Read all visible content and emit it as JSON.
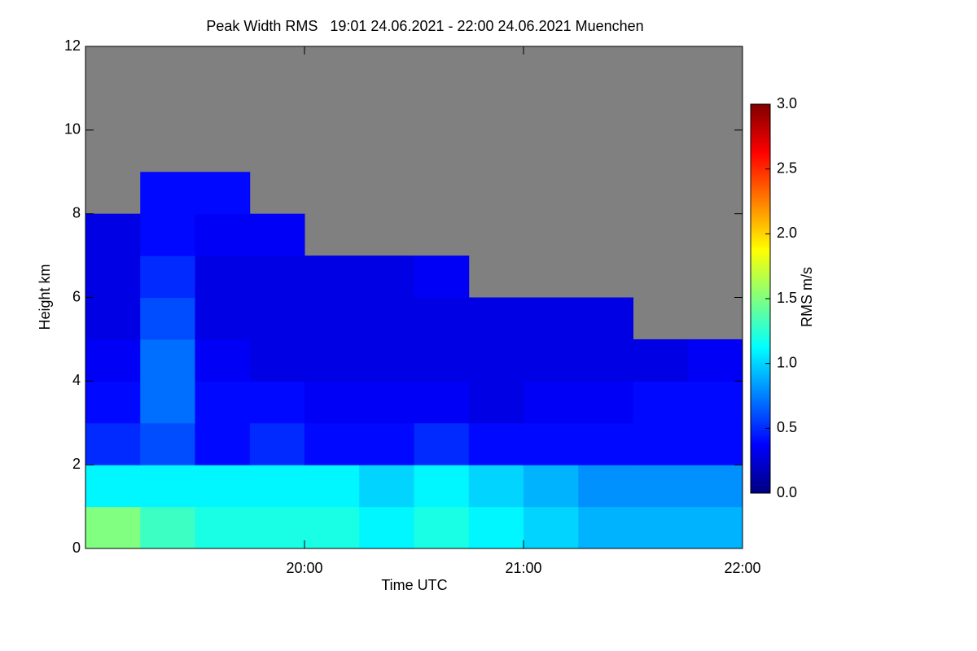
{
  "chart_data": {
    "type": "heatmap",
    "title": "Peak Width RMS   19:01 24.06.2021 - 22:00 24.06.2021 Muenchen",
    "x_label": "Time UTC",
    "y_label": "Height km",
    "colorbar_label": "RMS m/s",
    "x": [
      19,
      19.25,
      19.5,
      19.75,
      20,
      20.25,
      20.5,
      20.75,
      21,
      21.25,
      21.5,
      21.75,
      22
    ],
    "y": [
      0,
      1,
      2,
      3,
      4,
      5,
      6,
      7,
      8,
      9,
      10,
      11,
      12
    ],
    "values": [
      [
        1.5,
        1.3,
        1.2,
        1.2,
        1.2,
        1.1,
        1.2,
        1.1,
        1.0,
        0.9,
        0.9,
        0.9
      ],
      [
        1.1,
        1.1,
        1.1,
        1.1,
        1.1,
        1.0,
        1.1,
        1.0,
        0.9,
        0.8,
        0.8,
        0.8
      ],
      [
        0.5,
        0.6,
        0.4,
        0.5,
        0.4,
        0.4,
        0.5,
        0.4,
        0.4,
        0.4,
        0.4,
        0.4
      ],
      [
        0.4,
        0.7,
        0.4,
        0.4,
        0.35,
        0.35,
        0.35,
        0.3,
        0.35,
        0.35,
        0.4,
        0.4
      ],
      [
        0.35,
        0.7,
        0.35,
        0.3,
        0.3,
        0.3,
        0.3,
        0.3,
        0.3,
        0.3,
        0.3,
        0.35
      ],
      [
        0.3,
        0.6,
        0.3,
        0.3,
        0.3,
        0.3,
        0.3,
        0.3,
        0.3,
        0.3,
        null,
        null
      ],
      [
        0.3,
        0.5,
        0.3,
        0.3,
        0.3,
        0.3,
        0.35,
        null,
        null,
        null,
        null,
        null
      ],
      [
        0.3,
        0.4,
        0.35,
        0.35,
        null,
        null,
        null,
        null,
        null,
        null,
        null,
        null
      ],
      [
        null,
        0.4,
        0.4,
        null,
        null,
        null,
        null,
        null,
        null,
        null,
        null,
        null
      ],
      [
        null,
        null,
        null,
        null,
        null,
        null,
        null,
        null,
        null,
        null,
        null,
        null
      ],
      [
        null,
        null,
        null,
        null,
        null,
        null,
        null,
        null,
        null,
        null,
        null,
        null
      ],
      [
        null,
        null,
        null,
        null,
        null,
        null,
        null,
        null,
        null,
        null,
        null,
        null
      ]
    ],
    "colormap": "jet",
    "missing_color": "#808080",
    "xlim": [
      19,
      22
    ],
    "xticks": [
      {
        "value": 20,
        "label": "20:00"
      },
      {
        "value": 21,
        "label": "21:00"
      },
      {
        "value": 22,
        "label": "22:00"
      }
    ],
    "ylim": [
      0,
      12
    ],
    "yticks": [
      0,
      2,
      4,
      6,
      8,
      10,
      12
    ],
    "zlim": [
      0,
      3
    ],
    "zticks": [
      {
        "value": 0,
        "label": "0.0"
      },
      {
        "value": 0.5,
        "label": "0.5"
      },
      {
        "value": 1,
        "label": "1.0"
      },
      {
        "value": 1.5,
        "label": "1.5"
      },
      {
        "value": 2,
        "label": "2.0"
      },
      {
        "value": 2.5,
        "label": "2.5"
      },
      {
        "value": 3,
        "label": "3.0"
      }
    ]
  }
}
